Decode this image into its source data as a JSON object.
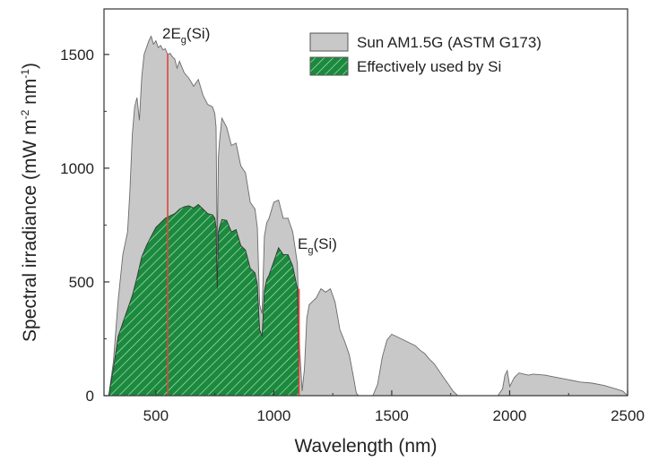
{
  "chart_data": {
    "type": "area",
    "title": "",
    "xlabel": "Wavelength (nm)",
    "ylabel": "Spectral irradiance (mW m",
    "ylabel_sup1": "-2",
    "ylabel_mid": " nm",
    "ylabel_sup2": "-1",
    "ylabel_end": ")",
    "xlim": [
      280,
      2500
    ],
    "ylim": [
      0,
      1700
    ],
    "xticks": [
      "500",
      "1000",
      "1500",
      "2000",
      "2500"
    ],
    "yticks": [
      "0",
      "500",
      "1000",
      "1500"
    ],
    "legend_position": "top-right",
    "grid": false,
    "series": [
      {
        "name": "Sun AM1.5G (ASTM G173)",
        "color": "#c8c8c8",
        "x": [
          300,
          320,
          340,
          360,
          380,
          390,
          400,
          410,
          420,
          430,
          440,
          450,
          460,
          470,
          480,
          490,
          500,
          510,
          520,
          530,
          540,
          550,
          560,
          570,
          580,
          590,
          600,
          620,
          640,
          660,
          680,
          700,
          720,
          740,
          750,
          755,
          760,
          765,
          770,
          780,
          800,
          820,
          840,
          860,
          880,
          900,
          920,
          930,
          940,
          950,
          960,
          970,
          980,
          1000,
          1020,
          1040,
          1060,
          1080,
          1100,
          1110,
          1120,
          1130,
          1140,
          1150,
          1160,
          1180,
          1200,
          1220,
          1240,
          1260,
          1280,
          1300,
          1320,
          1340,
          1350,
          1360,
          1380,
          1400,
          1420,
          1440,
          1460,
          1480,
          1500,
          1520,
          1540,
          1560,
          1580,
          1600,
          1620,
          1640,
          1660,
          1680,
          1700,
          1720,
          1740,
          1760,
          1780,
          1800,
          1810,
          1820,
          1900,
          1950,
          1970,
          1980,
          1990,
          2000,
          2020,
          2040,
          2060,
          2080,
          2100,
          2150,
          2200,
          2250,
          2300,
          2350,
          2400,
          2450,
          2480,
          2500
        ],
        "values": [
          0,
          150,
          420,
          620,
          720,
          900,
          1150,
          1270,
          1310,
          1210,
          1400,
          1500,
          1530,
          1560,
          1580,
          1545,
          1560,
          1530,
          1540,
          1520,
          1525,
          1500,
          1505,
          1490,
          1480,
          1440,
          1470,
          1420,
          1395,
          1360,
          1390,
          1320,
          1280,
          1270,
          1240,
          1180,
          620,
          1050,
          1120,
          1220,
          1180,
          1100,
          1110,
          1010,
          980,
          850,
          820,
          740,
          400,
          360,
          700,
          760,
          780,
          850,
          860,
          780,
          780,
          720,
          580,
          200,
          20,
          120,
          340,
          400,
          410,
          430,
          470,
          455,
          470,
          410,
          290,
          240,
          180,
          70,
          10,
          0,
          0,
          0,
          0,
          50,
          170,
          245,
          270,
          260,
          250,
          240,
          230,
          220,
          200,
          185,
          160,
          140,
          110,
          80,
          50,
          20,
          0,
          0,
          0,
          0,
          0,
          0,
          30,
          90,
          110,
          40,
          80,
          100,
          95,
          90,
          95,
          90,
          80,
          70,
          60,
          55,
          45,
          30,
          20,
          0
        ]
      },
      {
        "name": "Effectively used by Si",
        "color": "#1b8a3e",
        "x": [
          300,
          320,
          340,
          360,
          380,
          400,
          420,
          440,
          460,
          480,
          500,
          520,
          540,
          560,
          580,
          600,
          620,
          640,
          660,
          680,
          700,
          720,
          740,
          750,
          755,
          760,
          765,
          770,
          780,
          800,
          820,
          840,
          860,
          880,
          900,
          920,
          930,
          940,
          950,
          960,
          970,
          980,
          1000,
          1020,
          1040,
          1060,
          1080,
          1100,
          1107
        ],
        "values": [
          0,
          120,
          260,
          320,
          380,
          440,
          520,
          610,
          660,
          700,
          740,
          760,
          780,
          790,
          800,
          820,
          830,
          835,
          825,
          840,
          820,
          800,
          795,
          780,
          740,
          470,
          720,
          740,
          775,
          770,
          720,
          730,
          660,
          640,
          560,
          540,
          490,
          290,
          260,
          460,
          510,
          530,
          590,
          650,
          620,
          620,
          570,
          470,
          0
        ]
      }
    ],
    "annotations": [
      {
        "main": "2E",
        "sub": "g",
        "rest": "(Si)",
        "x": 550
      },
      {
        "main": "E",
        "sub": "g",
        "rest": "(Si)",
        "x": 1107
      }
    ]
  }
}
